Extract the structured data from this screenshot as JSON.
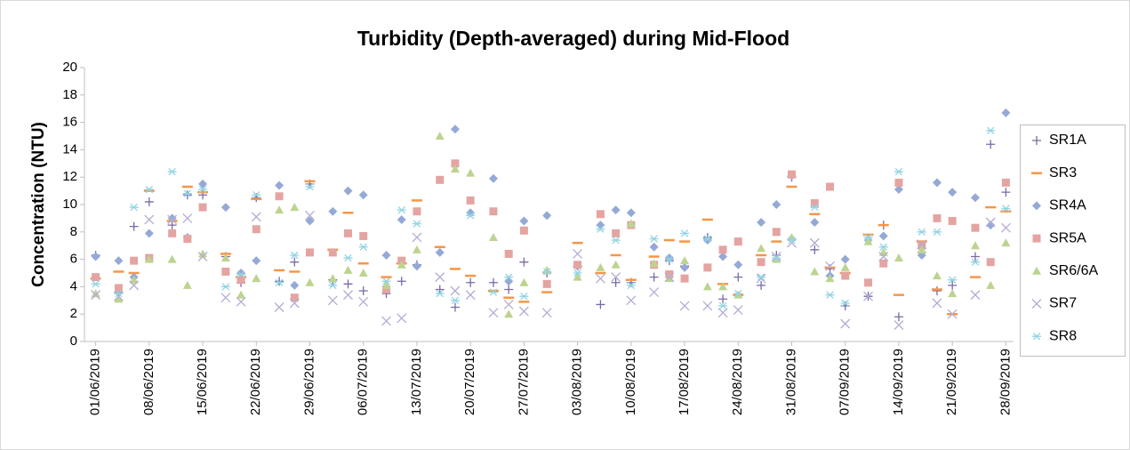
{
  "chart_data": {
    "type": "scatter",
    "title": "Turbidity (Depth-averaged) during Mid-Flood",
    "y_label": "Concentration (NTU)",
    "x": [
      "01/06/2019",
      "04/06/2019",
      "06/06/2019",
      "08/06/2019",
      "11/06/2019",
      "13/06/2019",
      "15/06/2019",
      "18/06/2019",
      "20/06/2019",
      "22/06/2019",
      "25/06/2019",
      "27/06/2019",
      "29/06/2019",
      "02/07/2019",
      "04/07/2019",
      "06/07/2019",
      "09/07/2019",
      "11/07/2019",
      "13/07/2019",
      "16/07/2019",
      "18/07/2019",
      "20/07/2019",
      "23/07/2019",
      "25/07/2019",
      "27/07/2019",
      "30/07/2019",
      "03/08/2019",
      "06/08/2019",
      "08/08/2019",
      "10/08/2019",
      "13/08/2019",
      "15/08/2019",
      "17/08/2019",
      "20/08/2019",
      "22/08/2019",
      "24/08/2019",
      "27/08/2019",
      "29/08/2019",
      "31/08/2019",
      "03/09/2019",
      "05/09/2019",
      "07/09/2019",
      "10/09/2019",
      "12/09/2019",
      "14/09/2019",
      "17/09/2019",
      "19/09/2019",
      "21/09/2019",
      "24/09/2019",
      "26/09/2019",
      "28/09/2019"
    ],
    "xlim": [
      "31/05/2019",
      "29/09/2019"
    ],
    "xticks": [
      "01/06/2019",
      "08/06/2019",
      "15/06/2019",
      "22/06/2019",
      "29/06/2019",
      "06/07/2019",
      "13/07/2019",
      "20/07/2019",
      "27/07/2019",
      "03/08/2019",
      "10/08/2019",
      "17/08/2019",
      "24/08/2019",
      "31/08/2019",
      "07/09/2019",
      "14/09/2019",
      "21/09/2019",
      "28/09/2019"
    ],
    "ylim": [
      0,
      20
    ],
    "yticks": [
      0,
      2,
      4,
      6,
      8,
      10,
      12,
      14,
      16,
      18,
      20
    ],
    "grid": false,
    "legend": "right",
    "series": [
      {
        "name": "SR1A",
        "color": "#7a6aa6",
        "marker": "plus",
        "values": [
          6.3,
          3.6,
          8.4,
          10.2,
          8.5,
          10.7,
          10.7,
          6.2,
          4.3,
          10.5,
          4.4,
          5.8,
          11.5,
          4.5,
          4.2,
          3.7,
          3.5,
          4.4,
          5.6,
          3.8,
          2.5,
          4.3,
          4.3,
          3.8,
          5.8,
          5.0,
          5.5,
          2.7,
          4.3,
          4.3,
          4.7,
          5.9,
          5.5,
          7.6,
          3.1,
          4.7,
          4.1,
          6.3,
          12.0,
          6.7,
          5.3,
          2.6,
          3.3,
          8.5,
          1.8,
          6.5,
          3.7,
          4.1,
          6.2,
          14.4,
          10.9
        ]
      },
      {
        "name": "SR3",
        "color": "#f79646",
        "marker": "dash",
        "values": [
          4.6,
          5.1,
          5.0,
          11.0,
          8.8,
          11.3,
          10.9,
          6.4,
          4.7,
          10.4,
          5.2,
          5.1,
          11.7,
          6.7,
          9.4,
          5.7,
          4.7,
          5.7,
          10.3,
          6.9,
          5.3,
          4.8,
          3.7,
          3.2,
          2.9,
          3.6,
          7.2,
          5.0,
          6.3,
          4.5,
          6.2,
          7.4,
          7.3,
          8.9,
          4.2,
          3.4,
          6.3,
          7.3,
          11.3,
          9.3,
          5.4,
          5.0,
          7.8,
          8.5,
          3.4,
          7.3,
          3.8,
          2.0,
          4.7,
          9.8,
          9.5
        ]
      },
      {
        "name": "SR4A",
        "color": "#95a9d6",
        "marker": "diamond",
        "values": [
          6.2,
          5.9,
          4.7,
          7.9,
          9.0,
          7.6,
          11.5,
          9.8,
          5.0,
          5.9,
          11.4,
          4.1,
          8.8,
          9.5,
          11.0,
          10.7,
          6.3,
          8.9,
          5.5,
          6.5,
          15.5,
          9.4,
          11.9,
          4.4,
          8.8,
          9.2,
          5.5,
          8.5,
          9.6,
          9.4,
          6.9,
          6.1,
          5.4,
          7.4,
          6.2,
          5.6,
          8.7,
          10.0,
          12.1,
          8.7,
          4.8,
          6.0,
          7.4,
          7.7,
          11.1,
          6.3,
          11.6,
          10.9,
          10.5,
          8.5,
          16.7
        ]
      },
      {
        "name": "SR5A",
        "color": "#e4a4a1",
        "marker": "square",
        "values": [
          4.7,
          3.9,
          5.9,
          6.1,
          7.9,
          7.5,
          9.8,
          5.1,
          4.5,
          8.2,
          10.6,
          3.2,
          6.5,
          6.5,
          7.9,
          7.7,
          3.8,
          5.9,
          9.5,
          11.8,
          13.0,
          10.3,
          9.5,
          6.4,
          8.1,
          4.2,
          5.6,
          9.3,
          7.9,
          8.5,
          5.6,
          4.9,
          4.6,
          5.4,
          6.7,
          7.3,
          5.8,
          8.0,
          12.2,
          10.1,
          11.3,
          4.8,
          4.3,
          5.7,
          11.6,
          7.0,
          9.0,
          8.8,
          8.3,
          5.8,
          11.6
        ]
      },
      {
        "name": "SR6/6A",
        "color": "#bcd48f",
        "marker": "triangle",
        "values": [
          3.5,
          3.1,
          4.5,
          6.0,
          6.0,
          4.1,
          6.4,
          6.1,
          3.4,
          4.6,
          9.6,
          9.8,
          4.3,
          4.6,
          5.2,
          5.0,
          4.1,
          5.6,
          6.7,
          15.0,
          12.6,
          12.3,
          7.6,
          2.0,
          4.3,
          5.2,
          4.7,
          5.4,
          5.6,
          8.6,
          5.7,
          4.6,
          5.9,
          4.0,
          4.0,
          3.4,
          6.8,
          6.0,
          7.6,
          5.1,
          4.6,
          5.4,
          7.3,
          6.5,
          6.1,
          6.7,
          4.8,
          3.5,
          7.0,
          4.1,
          7.2
        ]
      },
      {
        "name": "SR7",
        "color": "#b3acd4",
        "marker": "x",
        "values": [
          3.4,
          3.3,
          4.1,
          8.9,
          8.9,
          9.0,
          6.2,
          3.2,
          2.9,
          9.1,
          2.5,
          2.8,
          9.2,
          3.0,
          3.4,
          2.9,
          1.5,
          1.7,
          7.6,
          4.7,
          3.7,
          3.4,
          2.1,
          2.7,
          2.2,
          2.1,
          6.4,
          4.6,
          4.7,
          3.0,
          3.6,
          4.7,
          2.6,
          2.6,
          2.1,
          2.3,
          4.6,
          6.2,
          7.2,
          7.2,
          5.5,
          1.3,
          3.3,
          6.2,
          1.2,
          7.1,
          2.8,
          2.0,
          3.4,
          8.7,
          8.3
        ]
      },
      {
        "name": "SR8",
        "color": "#93d3e3",
        "marker": "asterisk",
        "values": [
          4.2,
          3.5,
          9.8,
          11.1,
          12.4,
          10.8,
          11.1,
          4.0,
          4.9,
          10.7,
          4.3,
          6.3,
          11.3,
          4.1,
          6.1,
          6.9,
          4.4,
          9.6,
          8.6,
          3.5,
          3.0,
          9.2,
          3.6,
          4.7,
          3.3,
          5.1,
          5.0,
          8.2,
          7.4,
          4.1,
          7.5,
          6.0,
          7.9,
          7.5,
          2.6,
          3.5,
          4.7,
          6.1,
          7.4,
          9.8,
          3.4,
          2.8,
          7.6,
          6.9,
          12.4,
          8.0,
          8.0,
          4.5,
          5.8,
          15.4,
          9.7
        ]
      }
    ]
  }
}
